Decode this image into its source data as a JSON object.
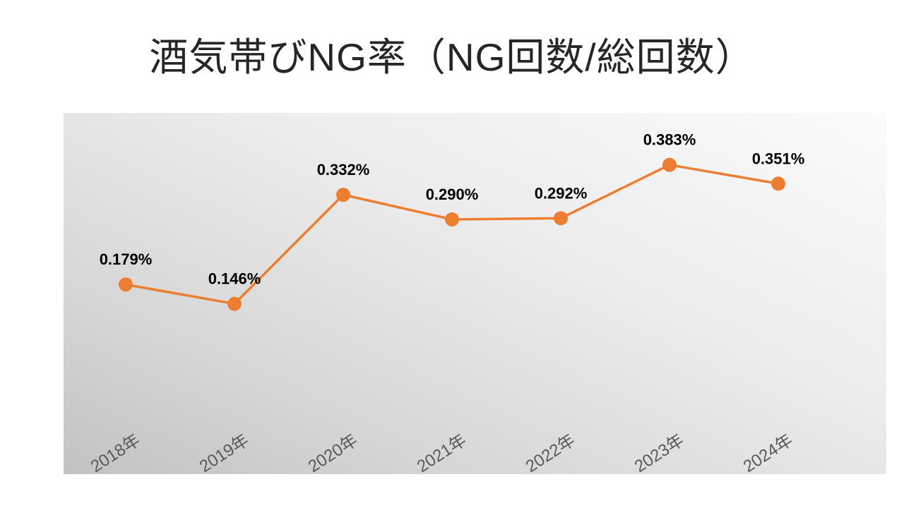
{
  "page": {
    "title": "酒気帯びNG率（NG回数/総回数）"
  },
  "chart_data": {
    "type": "line",
    "title": "酒気帯びNG率（NG回数/総回数）",
    "categories": [
      "2018年",
      "2019年",
      "2020年",
      "2021年",
      "2022年",
      "2023年",
      "2024年"
    ],
    "values": [
      0.179,
      0.146,
      0.332,
      0.29,
      0.292,
      0.383,
      0.351
    ],
    "data_labels": [
      "0.179%",
      "0.146%",
      "0.332%",
      "0.290%",
      "0.292%",
      "0.383%",
      "0.351%"
    ],
    "unit": "%",
    "ylim": [
      0,
      0.45
    ],
    "grid": false,
    "legend": "none",
    "line_color": "#ed7d31",
    "marker_color": "#ed7d31",
    "data_label_color": "#000000",
    "axis_label_color": "#595959"
  }
}
